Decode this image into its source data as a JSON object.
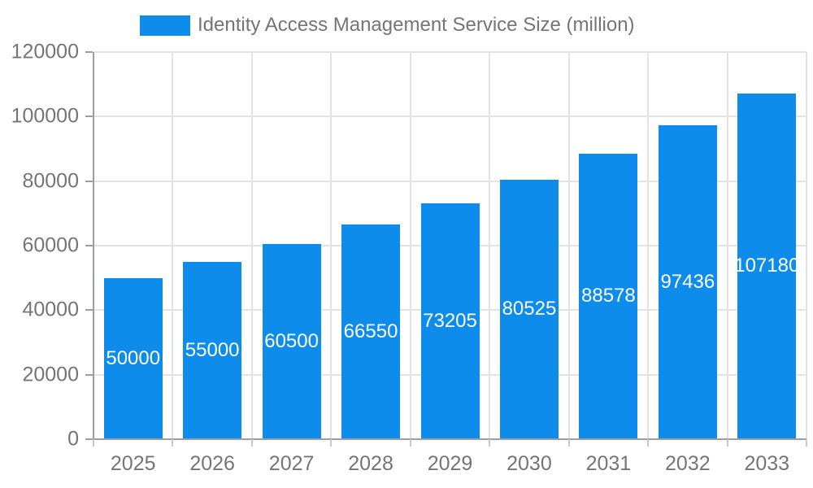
{
  "chart_data": {
    "type": "bar",
    "title": "Identity Access Management Service Size (million)",
    "categories": [
      "2025",
      "2026",
      "2027",
      "2028",
      "2029",
      "2030",
      "2031",
      "2032",
      "2033"
    ],
    "values": [
      50000,
      55000,
      60500,
      66550,
      73205,
      80525,
      88578,
      97436,
      107180
    ],
    "value_labels": [
      "50000",
      "55000",
      "60500",
      "66550",
      "73205",
      "80525",
      "88578",
      "97436",
      "107180"
    ],
    "xlabel": "",
    "ylabel": "",
    "ylim": [
      0,
      120000
    ],
    "ytick_step": 20000,
    "ytick_labels": [
      "0",
      "20000",
      "40000",
      "60000",
      "80000",
      "100000",
      "120000"
    ],
    "grid": true,
    "legend_position": "top",
    "colors": {
      "bar": "#0d8ceb",
      "value_label": "#ffffff",
      "axis_label": "#757575",
      "gridline": "#e3e3e3",
      "axis_line": "#9e9e9e",
      "background": "#ffffff"
    }
  }
}
